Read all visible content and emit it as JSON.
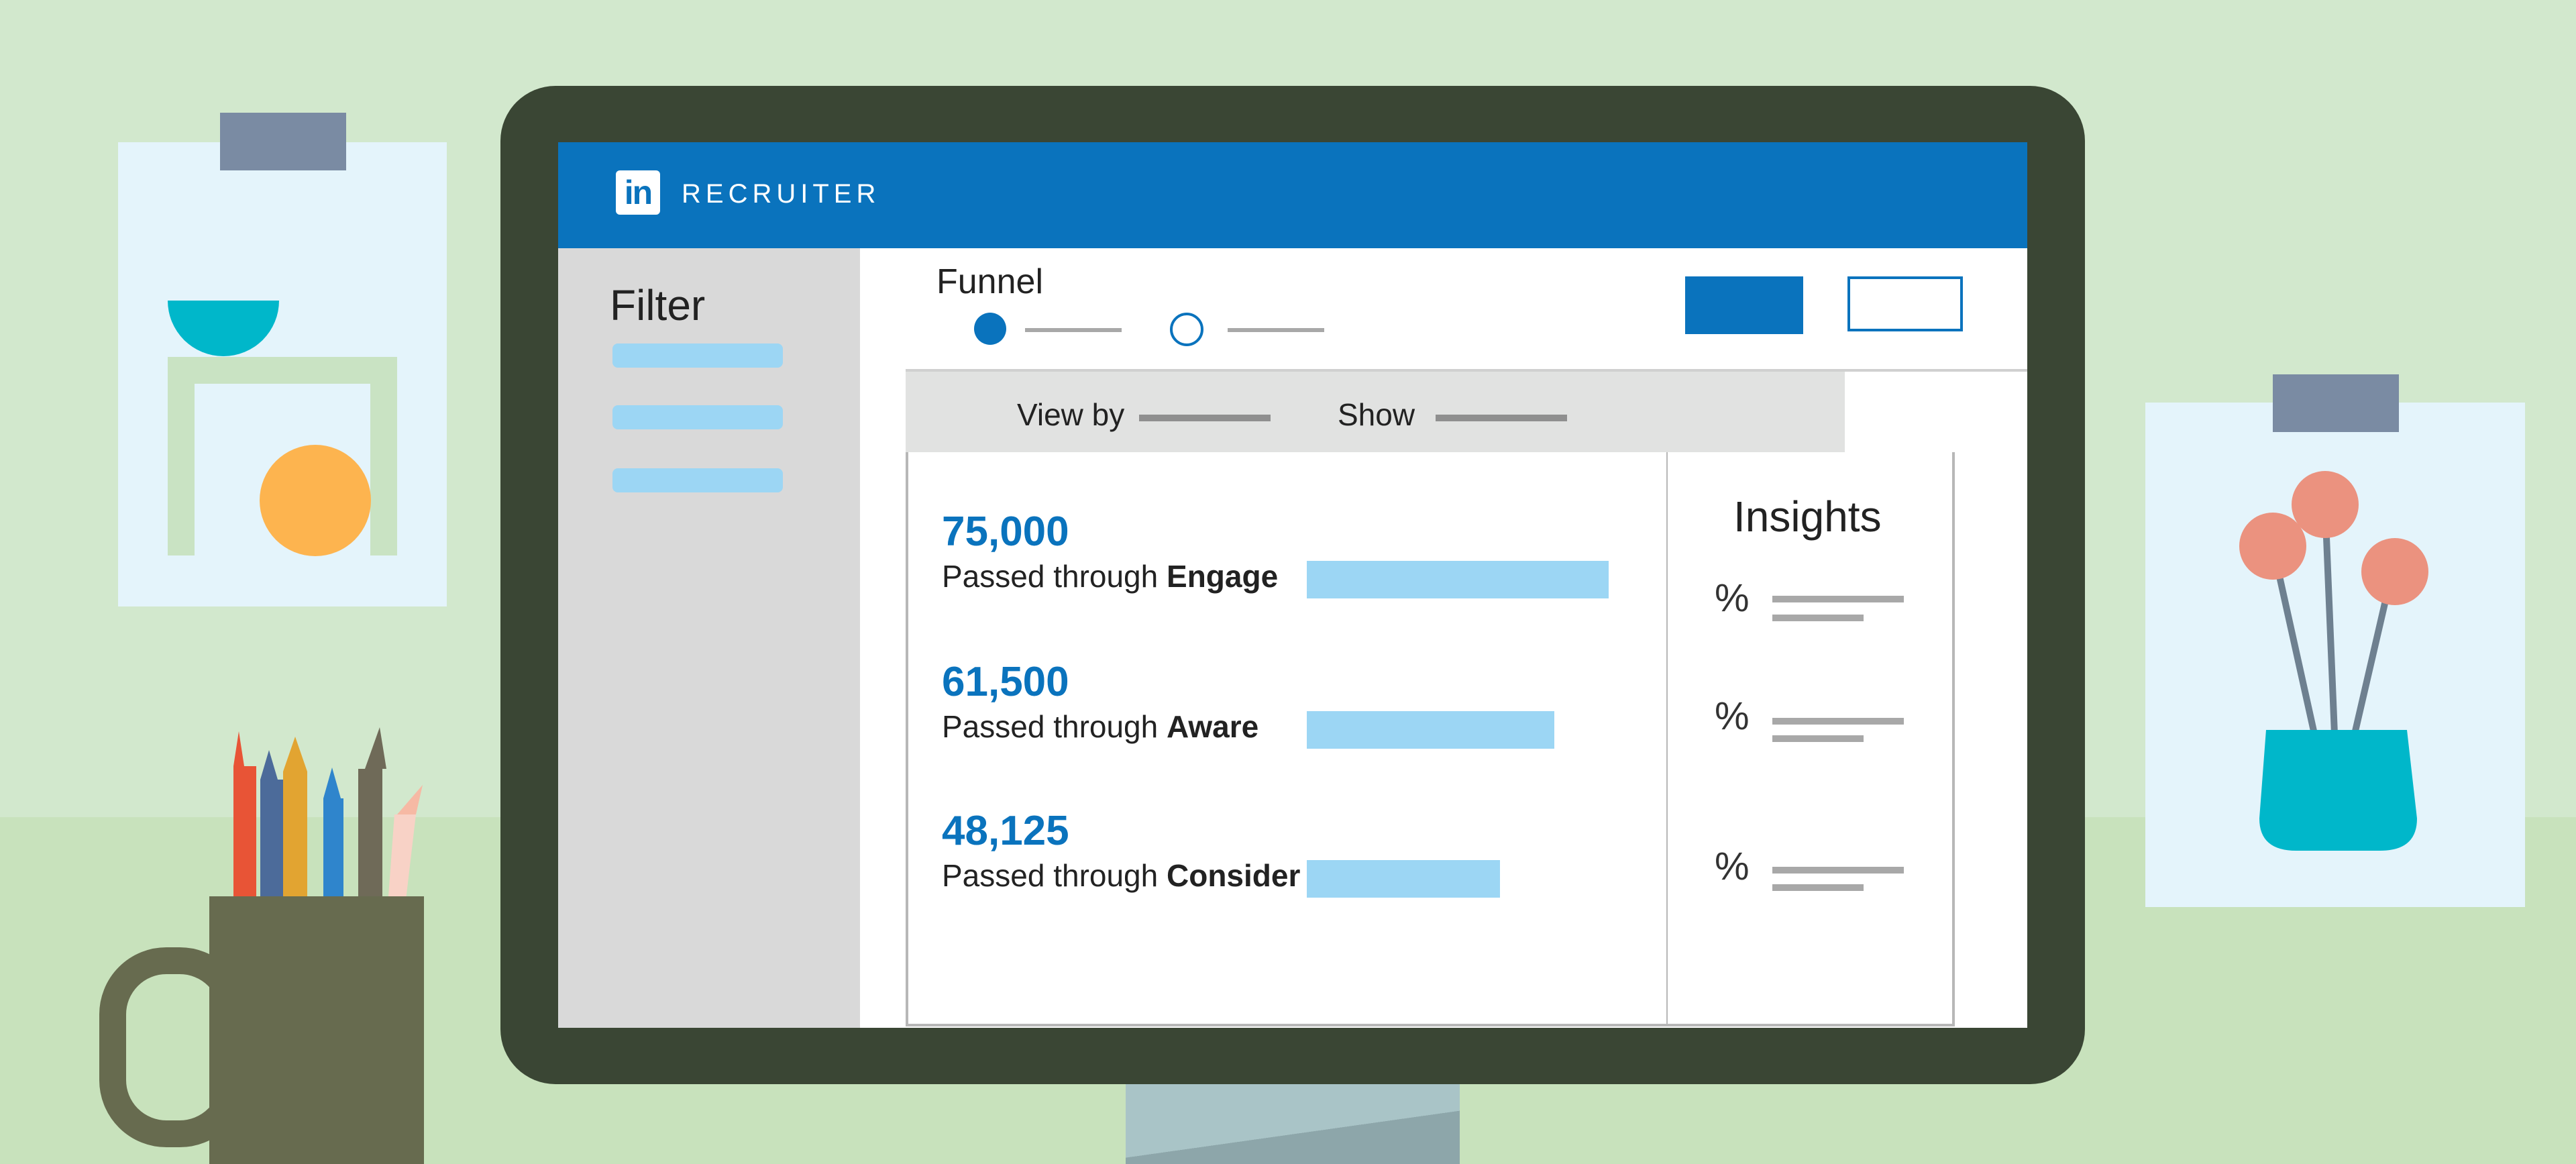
{
  "app": {
    "logo_text": "in",
    "brand": "RECRUITER"
  },
  "sidebar": {
    "title": "Filter",
    "filter_pills": 3
  },
  "funnel": {
    "label": "Funnel",
    "steps": [
      "active",
      "inactive"
    ]
  },
  "toolbar": {
    "view_by_label": "View by",
    "show_label": "Show"
  },
  "stats": [
    {
      "value": "75,000",
      "prefix": "Passed through ",
      "stage": "Engage",
      "fill_fraction": 1.0
    },
    {
      "value": "61,500",
      "prefix": "Passed through ",
      "stage": "Aware",
      "fill_fraction": 0.82
    },
    {
      "value": "48,125",
      "prefix": "Passed through ",
      "stage": "Consider",
      "fill_fraction": 0.64
    }
  ],
  "insights": {
    "title": "Insights",
    "rows": [
      "%",
      "%",
      "%"
    ]
  },
  "colors": {
    "brand_blue": "#0a73bd",
    "bar_blue": "#9cd6f4",
    "background": "#d2e8cd",
    "monitor_frame": "#3a4634"
  }
}
